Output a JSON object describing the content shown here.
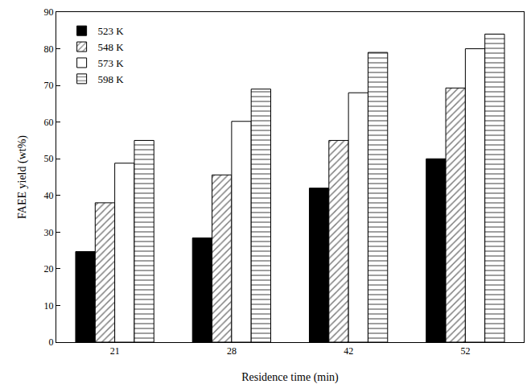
{
  "chart_data": {
    "type": "bar",
    "x_label": "Residence time (min)",
    "y_label": "FAEE yield (wt%)",
    "categories": [
      "21",
      "28",
      "42",
      "52"
    ],
    "series": [
      {
        "name": "523 K",
        "color": "#000000",
        "marker": "solid",
        "values": [
          24.7,
          28.4,
          42,
          50
        ]
      },
      {
        "name": "548 K",
        "color": "#ffffff",
        "marker": "diagonal",
        "values": [
          38,
          45.6,
          55,
          69.3
        ]
      },
      {
        "name": "573 K",
        "color": "#ffffff",
        "marker": "open",
        "values": [
          48.8,
          60.2,
          68,
          80
        ]
      },
      {
        "name": "598 K",
        "color": "#ffffff",
        "marker": "horizontal",
        "values": [
          55,
          69,
          79,
          84
        ]
      }
    ],
    "ylim": [
      0,
      90
    ],
    "yticks": [
      0,
      10,
      20,
      30,
      40,
      50,
      60,
      70,
      80,
      90
    ],
    "grid": false,
    "legend": "top-left"
  }
}
